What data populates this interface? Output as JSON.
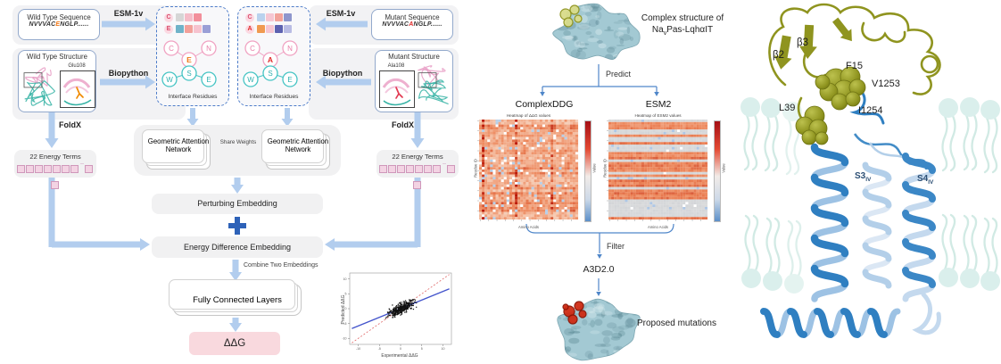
{
  "palette": {
    "block_arrow": "#b2cdee",
    "plus": "#2e62b8",
    "thin_arrow": "#4f86c9",
    "olive": "#8f941f",
    "channel_blue": "#2f7fc1",
    "pale_blue": "#b3cfe9",
    "lipid": "#d9efeb",
    "ddg_box_bg": "#f9d9de",
    "surface_teal": "#a3c9d3",
    "hot_red": "#c21807",
    "cool_blue": "#9ec1e0"
  },
  "left": {
    "wild_seq": {
      "title": "Wild Type Sequence",
      "pre": "NVVVAC",
      "mut": "E",
      "post": "NGLP......"
    },
    "mut_seq": {
      "title": "Mutant Sequence",
      "pre": "NVVVAC",
      "mut": "A",
      "post": "NGLP......"
    },
    "esm1v_left": "ESM-1v",
    "esm1v_right": "ESM-1v",
    "biopython_left": "Biopython",
    "biopython_right": "Biopython",
    "foldx_left": "FoldX",
    "foldx_right": "FoldX",
    "wild_struct": {
      "title": "Wild Type Structure",
      "residue": "Glu108"
    },
    "mut_struct": {
      "title": "Mutant Structure",
      "residue": "Ala108"
    },
    "wild_esm_rows": [
      {
        "letter": "C",
        "letter_color": "#d94f6e",
        "colors": [
          "#d6d6d6",
          "#f5bcc8",
          "#f28f9b"
        ]
      },
      {
        "letter": "E",
        "letter_color": "#d94f6e",
        "colors": [
          "#6fb3c9",
          "#f2a09a",
          "#f6c3cf",
          "#9a9fd6"
        ]
      }
    ],
    "mut_esm_rows": [
      {
        "letter": "C",
        "letter_color": "#d94f6e",
        "colors": [
          "#b9d2ee",
          "#f6c6d2",
          "#f2a39b",
          "#8e96cc"
        ]
      },
      {
        "letter": "A",
        "letter_color": "#e02b2b",
        "colors": [
          "#f09a50",
          "#f6c6d2",
          "#5d62b0",
          "#b9bce4"
        ]
      }
    ],
    "interface_left": "Interface Residues",
    "interface_right": "Interface Residues",
    "wild_nodes_top": {
      "letters": [
        "C",
        "E",
        "N"
      ],
      "mid_color": "#f07818"
    },
    "mut_nodes_top": {
      "letters": [
        "C",
        "A",
        "N"
      ],
      "mid_color": "#e02b2b"
    },
    "nodes_bottom": {
      "letters": [
        "W",
        "S",
        "E"
      ]
    },
    "energy_left": "22 Energy Terms",
    "energy_right": "22 Energy Terms",
    "gan_left": "Geometric Attention Network",
    "gan_right": "Geometric Attention Network",
    "share_weights": "Share Weights",
    "perturbing": "Perturbing Embedding",
    "energy_diff": "Energy Difference Embedding",
    "combine": "Combine Two Embeddings",
    "fcl": "Fully Connected Layers",
    "ddg": "ΔΔG"
  },
  "middle": {
    "complex_line1": "Complex structure of",
    "complex_pre": "Na",
    "complex_sub": "v",
    "complex_post": "Pas-LqhαIT",
    "predict": "Predict",
    "left_method": "ComplexDDG",
    "right_method": "ESM2",
    "hm1": {
      "title": "Heatmap of ΔΔG values",
      "xlabel": "Amino Acids",
      "ylabel": "Residue ID",
      "cbar": "Value"
    },
    "hm2": {
      "title": "Heatmap of ESM2 values",
      "xlabel": "Amino Acids",
      "ylabel": "Residue ID",
      "cbar": "Value"
    },
    "filter": "Filter",
    "a3d": "A3D2.0",
    "proposed": "Proposed mutations"
  },
  "right": {
    "beta2": "β2",
    "beta3": "β3",
    "f15": "F15",
    "v1253": "V1253",
    "l39": "L39",
    "i1254": "I1254",
    "s3": {
      "main": "S3",
      "sub": "IV"
    },
    "s4": {
      "main": "S4",
      "sub": "IV"
    }
  },
  "chart_data": [
    {
      "type": "scatter",
      "title": "",
      "xlabel": "Experimental ΔΔG",
      "ylabel": "Predicted ΔΔG",
      "x_ticks": [
        -10,
        -5,
        0,
        5,
        10
      ],
      "y_ticks": [
        -10,
        -5,
        0,
        5,
        10
      ],
      "xlim": [
        -12,
        12
      ],
      "ylim": [
        -12,
        12
      ],
      "series": [
        {
          "name": "predictions",
          "style": "black dots, dense cloud around origin"
        },
        {
          "name": "fit line",
          "style": "blue solid, slope ~0.6"
        },
        {
          "name": "identity",
          "style": "red dashed diagonal"
        }
      ]
    },
    {
      "type": "heatmap",
      "title": "Heatmap of ΔΔG values",
      "xlabel": "Amino Acids",
      "ylabel": "Residue ID",
      "colorbar_label": "Value",
      "palette": "red-white-blue",
      "appearance": "dense warm oranges/reds with sparse white and blue cells"
    },
    {
      "type": "heatmap",
      "title": "Heatmap of ESM2 values",
      "xlabel": "Amino Acids",
      "ylabel": "Residue ID",
      "colorbar_label": "Value",
      "palette": "red-white-blue",
      "appearance": "neutral gray with horizontal orange stripes and sparse blue cells"
    }
  ]
}
